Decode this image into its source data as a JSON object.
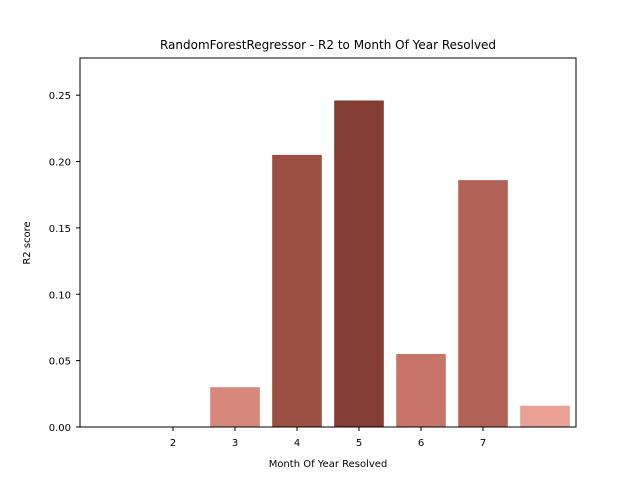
{
  "chart_data": {
    "type": "bar",
    "title": "RandomForestRegressor - R2 to Month Of Year Resolved",
    "xlabel": "Month Of Year Resolved",
    "ylabel": "R2 score",
    "ylim": [
      0,
      0.278
    ],
    "xlim": [
      0.5,
      8.5
    ],
    "grid": false,
    "legend": "none",
    "x_ticks": [
      2,
      3,
      4,
      5,
      6,
      7
    ],
    "y_ticks": [
      0.0,
      0.05,
      0.1,
      0.15,
      0.2,
      0.25
    ],
    "y_tick_labels": [
      "0.00",
      "0.05",
      "0.10",
      "0.15",
      "0.20",
      "0.25"
    ],
    "bars": [
      {
        "x": 1,
        "value": 0.0,
        "color": "#ffffff"
      },
      {
        "x": 2,
        "value": 0.0,
        "color": "#ffffff"
      },
      {
        "x": 3,
        "value": 0.03,
        "color": "#d6887b"
      },
      {
        "x": 4,
        "value": 0.205,
        "color": "#9a4f42"
      },
      {
        "x": 5,
        "value": 0.246,
        "color": "#843d34"
      },
      {
        "x": 6,
        "value": 0.055,
        "color": "#c87569"
      },
      {
        "x": 7,
        "value": 0.186,
        "color": "#b06257"
      },
      {
        "x": 8,
        "value": 0.016,
        "color": "#e8a093"
      }
    ]
  }
}
